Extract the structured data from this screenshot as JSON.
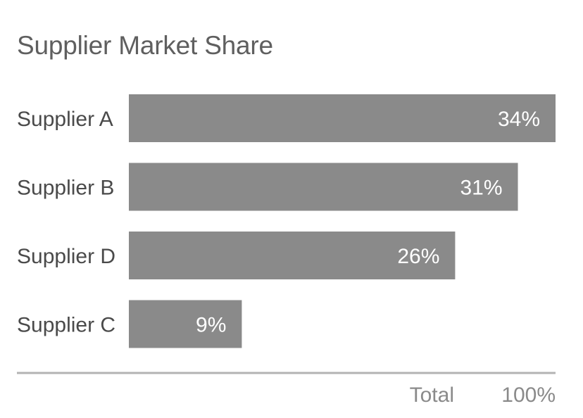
{
  "chart_data": {
    "type": "bar",
    "orientation": "horizontal",
    "title": "Supplier Market Share",
    "categories": [
      "Supplier A",
      "Supplier B",
      "Supplier D",
      "Supplier C"
    ],
    "values": [
      34,
      31,
      26,
      9
    ],
    "value_labels": [
      "34%",
      "31%",
      "26%",
      "9%"
    ],
    "unit": "%",
    "xlim": [
      0,
      34
    ],
    "grid": false,
    "legend": "none",
    "total": {
      "label": "Total",
      "value": 100,
      "value_label": "100%"
    }
  },
  "colors": {
    "bar": "#8a8a8a",
    "bar_text": "#ffffff",
    "title": "#5f5f5f",
    "category_text": "#4a4a4a",
    "total_text": "#8a8a8a",
    "rule": "#b3b3b3"
  }
}
